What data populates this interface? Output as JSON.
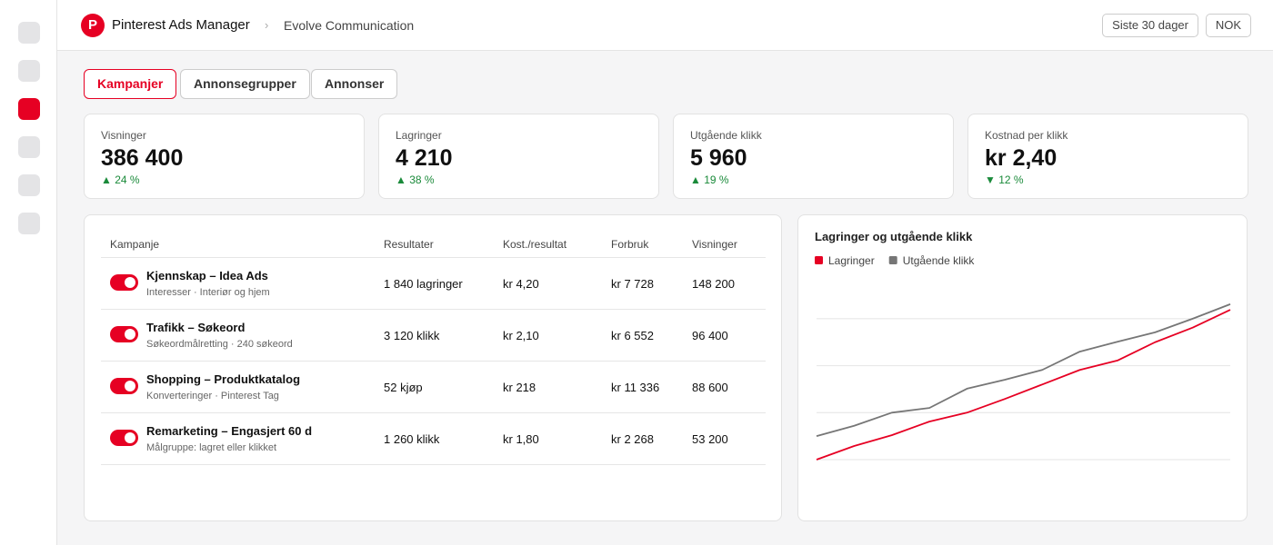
{
  "header": {
    "app": "Pinterest Ads Manager",
    "account": "Evolve Communication",
    "buttons": [
      "Siste 30 dager",
      "NOK"
    ]
  },
  "tabs": [
    "Kampanjer",
    "Annonsegrupper",
    "Annonser"
  ],
  "kpis": [
    {
      "label": "Visninger",
      "value": "386 400",
      "change": "▲ 24 %"
    },
    {
      "label": "Lagringer",
      "value": "4 210",
      "change": "▲ 38 %"
    },
    {
      "label": "Utgående klikk",
      "value": "5 960",
      "change": "▲ 19 %"
    },
    {
      "label": "Kostnad per klikk",
      "value": "kr 2,40",
      "change": "▼ 12 %"
    }
  ],
  "table": {
    "columns": [
      "Kampanje",
      "Resultater",
      "Kost./resultat",
      "Forbruk",
      "Visninger"
    ],
    "rows": [
      {
        "name": "Kjennskap – Idea Ads",
        "sub": "Interesser · Interiør og hjem",
        "cells": [
          "1 840 lagringer",
          "kr 4,20",
          "kr 7 728",
          "148 200"
        ]
      },
      {
        "name": "Trafikk – Søkeord",
        "sub": "Søkeordmålretting · 240 søkeord",
        "cells": [
          "3 120 klikk",
          "kr 2,10",
          "kr 6 552",
          "96 400"
        ]
      },
      {
        "name": "Shopping – Produktkatalog",
        "sub": "Konverteringer · Pinterest Tag",
        "cells": [
          "52 kjøp",
          "kr 218",
          "kr 11 336",
          "88 600"
        ]
      },
      {
        "name": "Remarketing – Engasjert 60 d",
        "sub": "Målgruppe: lagret eller klikket",
        "cells": [
          "1 260 klikk",
          "kr 1,80",
          "kr 2 268",
          "53 200"
        ]
      }
    ]
  },
  "chart_data": {
    "type": "line",
    "title": "Lagringer og utgående klikk",
    "categories": [
      null,
      null,
      null,
      null,
      null,
      null,
      null,
      null,
      null,
      null,
      null,
      null
    ],
    "series": [
      {
        "name": "Lagringer",
        "color": "#e60023",
        "values": [
          0,
          0.29,
          0.52,
          0.81,
          1.0,
          1.29,
          1.6,
          1.91,
          2.11,
          2.5,
          2.81,
          3.19
        ]
      },
      {
        "name": "Utgående klikk",
        "color": "#767676",
        "values": [
          0.5,
          0.72,
          1.0,
          1.1,
          1.51,
          1.7,
          1.91,
          2.3,
          2.51,
          2.71,
          3.0,
          3.31
        ]
      }
    ],
    "ylim": [
      0,
      4
    ],
    "yticks": [
      0,
      1,
      2,
      3
    ],
    "grid": true
  }
}
